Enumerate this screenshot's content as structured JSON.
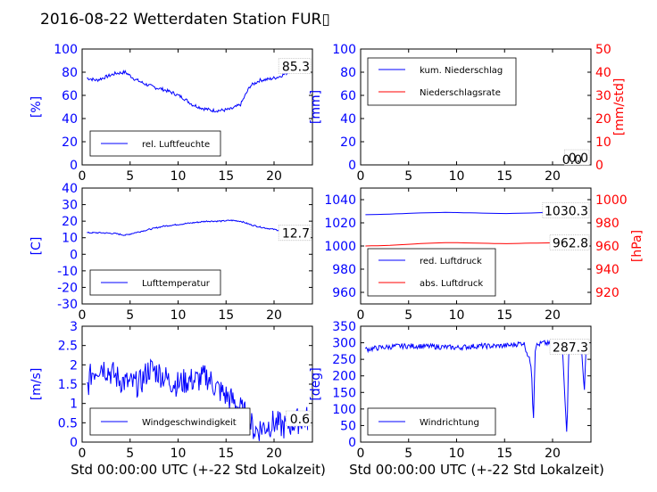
{
  "figure": {
    "title": "2016-08-22 Wetterdaten Station FUR▯",
    "xlabel": "Std 00:00:00 UTC (+-22 Std Lokalzeit)"
  },
  "colors": {
    "primary": "#0000ff",
    "secondary": "#ff0000",
    "axes": "#000000"
  },
  "chart_data": [
    {
      "type": "line",
      "ylabel": "[%]",
      "xlim": [
        0,
        24
      ],
      "ylim": [
        0,
        100
      ],
      "xticks": [
        0,
        5,
        10,
        15,
        20
      ],
      "yticks": [
        0,
        20,
        40,
        60,
        80,
        100
      ],
      "series": [
        {
          "name": "rel. Luftfeuchte",
          "color": "#0000ff",
          "noise": 1.5,
          "x": [
            0.5,
            1.5,
            2.5,
            3.5,
            4.5,
            5.5,
            6.5,
            7.5,
            8.5,
            9.5,
            10.5,
            11.5,
            12.5,
            13.5,
            14.5,
            15.5,
            16.5,
            17.0,
            17.5,
            18.5,
            19.5,
            20.5,
            21.5,
            22.5,
            23.5
          ],
          "y": [
            75,
            73,
            76,
            79,
            80,
            74,
            70,
            67,
            65,
            62,
            58,
            52,
            49,
            47,
            47,
            48,
            52,
            60,
            68,
            73,
            74,
            76,
            80,
            84,
            85
          ]
        }
      ],
      "last_value_label": "85.3",
      "legend_loc": "lower-left"
    },
    {
      "type": "line",
      "ylabel": "[mm]",
      "ylabel2": "[mm/std]",
      "xlim": [
        0,
        24
      ],
      "ylim": [
        0,
        100
      ],
      "ylim2": [
        0,
        50
      ],
      "xticks": [
        0,
        5,
        10,
        15,
        20
      ],
      "yticks": [
        0,
        20,
        40,
        60,
        80,
        100
      ],
      "yticks2": [
        0,
        10,
        20,
        30,
        40,
        50
      ],
      "series": [
        {
          "name": "kum. Niederschlag",
          "color": "#0000ff",
          "noise": 0,
          "x": [
            0.5,
            23.8
          ],
          "y": [
            0,
            0
          ]
        },
        {
          "name": "Niederschlagsrate",
          "color": "#ff0000",
          "noise": 0,
          "axis": 2,
          "x": [
            0.5,
            23.8
          ],
          "y": [
            0,
            0
          ]
        }
      ],
      "last_value_label": "0.0",
      "last_value_label2": "0.0",
      "legend_loc": "upper-left"
    },
    {
      "type": "line",
      "ylabel": "[C]",
      "xlim": [
        0,
        24
      ],
      "ylim": [
        -30,
        40
      ],
      "xticks": [
        0,
        5,
        10,
        15,
        20
      ],
      "yticks": [
        -30,
        -20,
        -10,
        0,
        10,
        20,
        30,
        40
      ],
      "series": [
        {
          "name": "Lufttemperatur",
          "color": "#0000ff",
          "noise": 0.4,
          "x": [
            0.5,
            2,
            3.5,
            4.5,
            5.5,
            7,
            8.5,
            10,
            11.5,
            13,
            14.5,
            15.5,
            16.5,
            17.5,
            18.5,
            19.5,
            20.5,
            21.5,
            22.5,
            23.5
          ],
          "y": [
            13,
            13,
            12.5,
            11.5,
            13,
            15,
            17,
            18,
            19,
            20,
            20,
            20.5,
            20,
            18,
            16.5,
            15.5,
            14.5,
            13.5,
            13,
            12.7
          ]
        }
      ],
      "last_value_label": "12.7",
      "legend_loc": "lower-left"
    },
    {
      "type": "line",
      "ylabel2": "[hPa]",
      "xlim": [
        0,
        24
      ],
      "ylim": [
        950,
        1050
      ],
      "ylim2": [
        910,
        1010
      ],
      "xticks": [
        0,
        5,
        10,
        15,
        20
      ],
      "yticks": [
        960,
        980,
        1000,
        1020,
        1040
      ],
      "yticks2": [
        920,
        940,
        960,
        980,
        1000
      ],
      "series": [
        {
          "name": "red. Luftdruck",
          "color": "#0000ff",
          "noise": 0,
          "x": [
            0.5,
            3,
            6,
            9,
            12,
            15,
            18,
            21,
            23.5
          ],
          "y": [
            1027,
            1027.5,
            1028.5,
            1029,
            1028.5,
            1028,
            1028.5,
            1029.5,
            1030.3
          ]
        },
        {
          "name": "abs. Luftdruck",
          "color": "#ff0000",
          "noise": 0,
          "axis": 2,
          "x": [
            0.5,
            3,
            6,
            9,
            12,
            15,
            18,
            21,
            23.5
          ],
          "y": [
            960,
            960.5,
            962,
            963,
            962.5,
            962,
            962.5,
            962.8,
            962.8
          ]
        }
      ],
      "last_value_label": "1030.3",
      "last_value_label2": "962.8",
      "legend_loc": "lower-left"
    },
    {
      "type": "line",
      "ylabel": "[m/s]",
      "xlim": [
        0,
        24
      ],
      "ylim": [
        0,
        3
      ],
      "xticks": [
        0,
        5,
        10,
        15,
        20
      ],
      "yticks": [
        0.0,
        0.5,
        1.0,
        1.5,
        2.0,
        2.5,
        3.0
      ],
      "series": [
        {
          "name": "Windgeschwindigkeit",
          "color": "#0000ff",
          "noise": 0.35,
          "x": [
            0.5,
            1,
            2,
            3,
            4,
            5,
            6,
            7,
            8,
            9,
            10,
            11,
            12,
            13,
            14,
            15,
            16,
            17,
            18,
            19,
            20,
            21,
            22,
            23,
            23.5
          ],
          "y": [
            1.4,
            1.8,
            2.0,
            1.8,
            1.6,
            1.5,
            1.5,
            1.9,
            1.8,
            1.6,
            1.5,
            1.6,
            1.6,
            1.7,
            1.4,
            1.2,
            1.0,
            0.7,
            0.3,
            0.4,
            0.5,
            0.4,
            0.5,
            0.6,
            0.6
          ]
        }
      ],
      "last_value_label": "0.6",
      "legend_loc": "lower-left"
    },
    {
      "type": "line",
      "ylabel": "[deg]",
      "xlim": [
        0,
        24
      ],
      "ylim": [
        0,
        350
      ],
      "xticks": [
        0,
        5,
        10,
        15,
        20
      ],
      "yticks": [
        0,
        50,
        100,
        150,
        200,
        250,
        300,
        350
      ],
      "series": [
        {
          "name": "Windrichtung",
          "color": "#0000ff",
          "noise": 8,
          "x": [
            0.5,
            2,
            4,
            6,
            8,
            10,
            12,
            14,
            15.5,
            17,
            17.8,
            18.0,
            18.2,
            19,
            20,
            21,
            21.3,
            21.5,
            21.7,
            22.5,
            23,
            23.3,
            23.5
          ],
          "y": [
            280,
            285,
            290,
            290,
            288,
            285,
            290,
            290,
            292,
            300,
            230,
            60,
            290,
            300,
            295,
            305,
            120,
            20,
            300,
            280,
            290,
            150,
            287
          ]
        }
      ],
      "last_value_label": "287.3",
      "legend_loc": "lower-left"
    }
  ]
}
